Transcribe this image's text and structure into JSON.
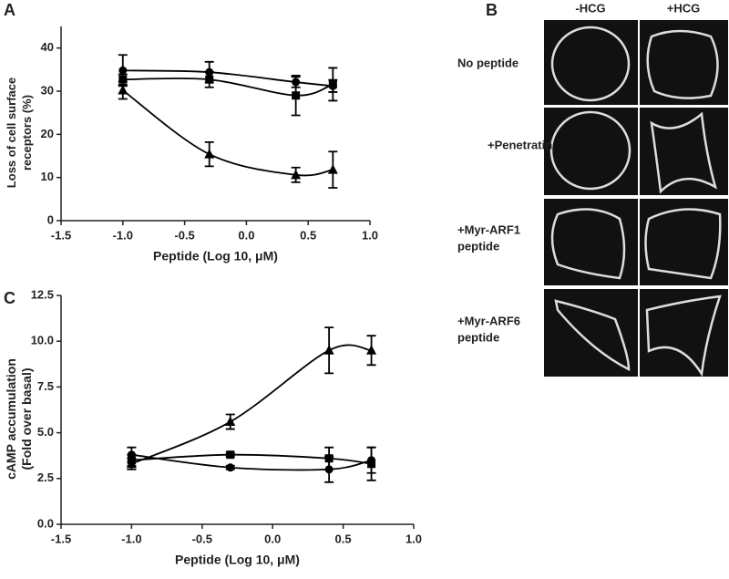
{
  "panel_labels": [
    "A",
    "B",
    "C"
  ],
  "chart_data": [
    {
      "type": "line",
      "ylabel": [
        "Loss of cell surface",
        "receptors (%)"
      ],
      "xlabel": "Peptide (Log 10, μM)",
      "xlim": [
        -1.5,
        1.0
      ],
      "xticks": [
        -1.5,
        {
          "value": -1.0,
          "label": "-1.0"
        },
        -0.5,
        {
          "value": 0.0,
          "label": "0.0"
        },
        0.5,
        {
          "value": 1.0,
          "label": "1.0"
        }
      ],
      "ylim": [
        0,
        45
      ],
      "yticks": [
        0,
        10,
        20,
        30,
        40
      ],
      "series": [
        {
          "marker": "circle",
          "color": "#000000",
          "x": [
            -1.0,
            -0.3,
            0.4,
            0.7
          ],
          "values": [
            34.8,
            34.4,
            32.1,
            31.2
          ],
          "errors": [
            3.6,
            2.4,
            1.2,
            1.4
          ]
        },
        {
          "marker": "square",
          "color": "#000000",
          "x": [
            -1.0,
            -0.3,
            0.4,
            0.7
          ],
          "values": [
            32.7,
            32.7,
            29.0,
            31.6
          ],
          "errors": [
            1.2,
            1.8,
            4.6,
            3.8
          ]
        },
        {
          "marker": "triangle",
          "color": "#000000",
          "x": [
            -1.0,
            -0.3,
            0.4,
            0.7
          ],
          "values": [
            30.2,
            15.4,
            10.6,
            11.8
          ],
          "errors": [
            2.0,
            2.8,
            1.7,
            4.2
          ]
        }
      ]
    },
    {
      "type": "line",
      "ylabel": [
        "cAMP accumulation",
        "(Fold over basal)"
      ],
      "xlabel": "Peptide (Log 10, μM)",
      "xlim": [
        -1.5,
        1.0
      ],
      "xticks": [
        -1.5,
        {
          "value": -1.0,
          "label": "-1.0"
        },
        -0.5,
        {
          "value": 0.0,
          "label": "0.0"
        },
        0.5,
        {
          "value": 1.0,
          "label": "1.0"
        }
      ],
      "ylim": [
        0,
        12.5
      ],
      "yticks": [
        {
          "value": 0.0,
          "label": "0.0"
        },
        2.5,
        {
          "value": 5.0,
          "label": "5.0"
        },
        7.5,
        {
          "value": 10.0,
          "label": "10.0"
        },
        12.5
      ],
      "series": [
        {
          "marker": "circle",
          "color": "#000000",
          "x": [
            -1.0,
            -0.3,
            0.4,
            0.7
          ],
          "values": [
            3.8,
            3.1,
            3.0,
            3.5
          ],
          "errors": [
            0.4,
            0.1,
            0.7,
            0.7
          ]
        },
        {
          "marker": "square",
          "color": "#000000",
          "x": [
            -1.0,
            -0.3,
            0.4,
            0.7
          ],
          "values": [
            3.5,
            3.8,
            3.6,
            3.3
          ],
          "errors": [
            0.3,
            0.1,
            0.6,
            0.9
          ]
        },
        {
          "marker": "triangle",
          "color": "#000000",
          "x": [
            -1.0,
            -0.3,
            0.4,
            0.7
          ],
          "values": [
            3.3,
            5.6,
            9.5,
            9.5
          ],
          "errors": [
            0.3,
            0.4,
            1.25,
            0.8
          ]
        }
      ]
    }
  ],
  "panel_b": {
    "columns": [
      "-HCG",
      "+HCG"
    ],
    "rows": [
      [
        "No peptide"
      ],
      [
        "+Penetratin"
      ],
      [
        "+Myr-ARF1",
        "peptide"
      ],
      [
        "+Myr-ARF6",
        "peptide"
      ]
    ]
  }
}
